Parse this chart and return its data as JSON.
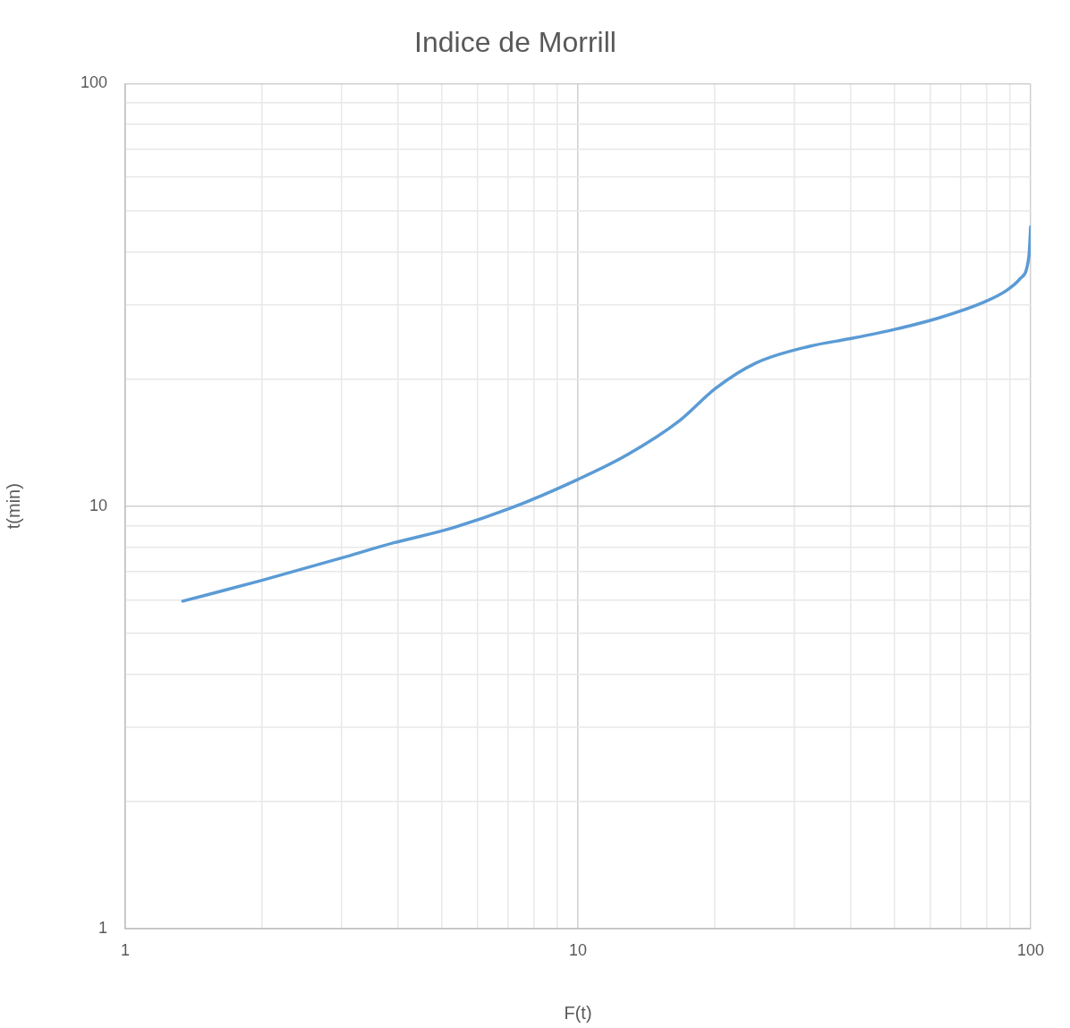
{
  "chart_data": {
    "type": "line",
    "title": "Indice de Morrill",
    "xlabel": "F(t)",
    "ylabel": "t(min)",
    "log": "xy",
    "grid": true,
    "legend": false,
    "marker": "none",
    "line_style": "solid",
    "xlim": [
      1,
      100
    ],
    "ylim": [
      1,
      100
    ],
    "xticks": [
      1,
      {
        "value": 2,
        "label": null
      },
      {
        "value": 3,
        "label": null
      },
      {
        "value": 4,
        "label": null
      },
      {
        "value": 5,
        "label": null
      },
      {
        "value": 6,
        "label": null
      },
      {
        "value": 7,
        "label": null
      },
      {
        "value": 8,
        "label": null
      },
      {
        "value": 9,
        "label": null
      },
      10,
      {
        "value": 20,
        "label": null
      },
      {
        "value": 30,
        "label": null
      },
      {
        "value": 40,
        "label": null
      },
      {
        "value": 50,
        "label": null
      },
      {
        "value": 60,
        "label": null
      },
      {
        "value": 70,
        "label": null
      },
      {
        "value": 80,
        "label": null
      },
      {
        "value": 90,
        "label": null
      },
      100
    ],
    "yticks": [
      1,
      {
        "value": 2,
        "label": null
      },
      {
        "value": 3,
        "label": null
      },
      {
        "value": 4,
        "label": null
      },
      {
        "value": 5,
        "label": null
      },
      {
        "value": 6,
        "label": null
      },
      {
        "value": 7,
        "label": null
      },
      {
        "value": 8,
        "label": null
      },
      {
        "value": 9,
        "label": null
      },
      10,
      {
        "value": 20,
        "label": null
      },
      {
        "value": 30,
        "label": null
      },
      {
        "value": 40,
        "label": null
      },
      {
        "value": 50,
        "label": null
      },
      {
        "value": 60,
        "label": null
      },
      {
        "value": 70,
        "label": null
      },
      {
        "value": 80,
        "label": null
      },
      {
        "value": 90,
        "label": null
      },
      100
    ],
    "series": [
      {
        "color": "#5b9bd5",
        "x": [
          1.34,
          1.98,
          2.98,
          3.92,
          5.15,
          7.08,
          10,
          12.8,
          16.8,
          20.1,
          24.7,
          32.5,
          39.9,
          50.1,
          62.8,
          78.9,
          88.5,
          94.7,
          99.1,
          100
        ],
        "values": [
          5.96,
          6.65,
          7.52,
          8.19,
          8.81,
          9.88,
          11.57,
          13.2,
          15.96,
          18.97,
          21.8,
          23.9,
          24.9,
          26.2,
          27.9,
          30.4,
          32.4,
          34.5,
          38.9,
          45.8
        ]
      }
    ]
  }
}
